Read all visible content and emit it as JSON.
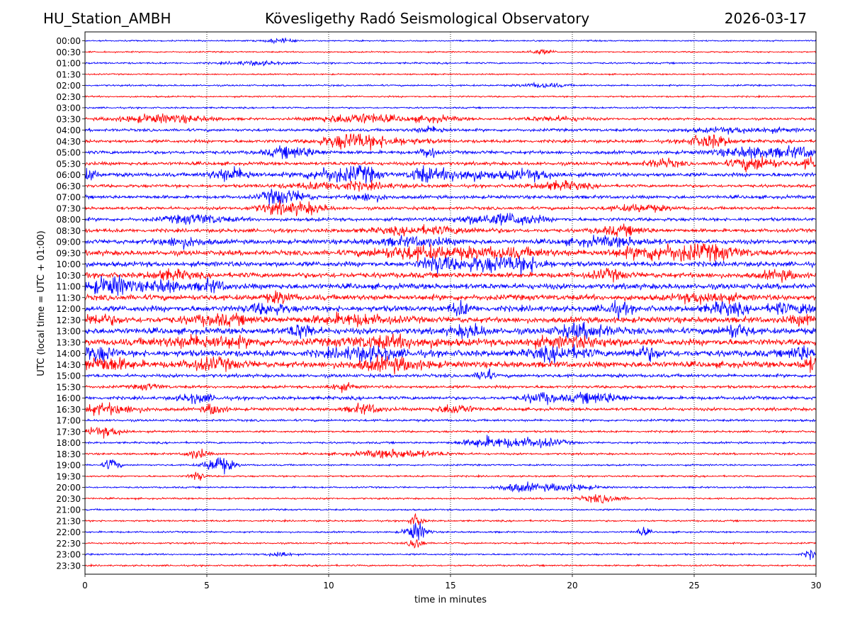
{
  "header": {
    "station": "HU_Station_AMBH",
    "title": "Kövesligethy Radó Seismological Observatory",
    "date": "2026-03-17"
  },
  "chart_data": {
    "type": "line",
    "title": "Kövesligethy Radó Seismological Observatory",
    "xlabel": "time in minutes",
    "ylabel": "UTC (local time = UTC + 01:00)",
    "xlim": [
      0,
      30
    ],
    "x_ticks": [
      "0",
      "5",
      "10",
      "15",
      "20",
      "25",
      "30"
    ],
    "x_tick_values": [
      0,
      5,
      10,
      15,
      20,
      25,
      30
    ],
    "grid": "vertical dotted",
    "colors": [
      "#0000ff",
      "#ff0000"
    ],
    "traces": [
      {
        "label": "00:00",
        "noise": 0.25,
        "bursts": [
          [
            8,
            0.4,
            0.8
          ]
        ]
      },
      {
        "label": "00:30",
        "noise": 0.25,
        "bursts": [
          [
            18.7,
            0.4,
            0.8
          ]
        ]
      },
      {
        "label": "01:00",
        "noise": 0.3,
        "bursts": [
          [
            7,
            0.8,
            0.7
          ]
        ]
      },
      {
        "label": "01:30",
        "noise": 0.25,
        "bursts": []
      },
      {
        "label": "02:00",
        "noise": 0.3,
        "bursts": [
          [
            18.8,
            0.6,
            0.8
          ]
        ]
      },
      {
        "label": "02:30",
        "noise": 0.28,
        "bursts": []
      },
      {
        "label": "03:00",
        "noise": 0.3,
        "bursts": []
      },
      {
        "label": "03:30",
        "noise": 0.4,
        "bursts": [
          [
            3.2,
            1.3,
            1.5
          ],
          [
            10.5,
            0.9,
            1.1
          ],
          [
            11.8,
            0.8,
            1.3
          ],
          [
            14.3,
            0.8,
            1.0
          ],
          [
            19.3,
            0.9,
            0.8
          ]
        ]
      },
      {
        "label": "04:00",
        "noise": 0.5,
        "bursts": [
          [
            14.2,
            0.5,
            1.0
          ],
          [
            27,
            1.5,
            0.8
          ]
        ]
      },
      {
        "label": "04:30",
        "noise": 0.55,
        "bursts": [
          [
            10.8,
            0.8,
            2.2
          ],
          [
            12.3,
            1.2,
            1.2
          ],
          [
            25.6,
            0.6,
            2.3
          ]
        ]
      },
      {
        "label": "05:00",
        "noise": 0.6,
        "bursts": [
          [
            8.5,
            0.7,
            2.0
          ],
          [
            14.1,
            0.2,
            2.5
          ],
          [
            27.5,
            1.1,
            1.8
          ],
          [
            29.5,
            0.5,
            1.5
          ]
        ]
      },
      {
        "label": "05:30",
        "noise": 0.6,
        "bursts": [
          [
            23.7,
            0.5,
            1.5
          ],
          [
            27.5,
            0.7,
            2.4
          ],
          [
            29.8,
            0.3,
            2.0
          ]
        ]
      },
      {
        "label": "06:00",
        "noise": 0.7,
        "bursts": [
          [
            0.2,
            0.2,
            2.0
          ],
          [
            6,
            0.6,
            2.2
          ],
          [
            10.3,
            0.9,
            2.3
          ],
          [
            11.5,
            0.4,
            1.8
          ],
          [
            13.8,
            0.3,
            2.5
          ],
          [
            15.3,
            0.9,
            2.0
          ],
          [
            18.2,
            0.9,
            1.5
          ]
        ]
      },
      {
        "label": "06:30",
        "noise": 0.55,
        "bursts": [
          [
            10.5,
            1.5,
            1.4
          ],
          [
            19.5,
            0.8,
            1.5
          ]
        ]
      },
      {
        "label": "07:00",
        "noise": 0.6,
        "bursts": [
          [
            7.8,
            0.4,
            2.3
          ],
          [
            8.6,
            0.5,
            1.5
          ],
          [
            11.6,
            0.5,
            1.3
          ]
        ]
      },
      {
        "label": "07:30",
        "noise": 0.55,
        "bursts": [
          [
            8,
            0.7,
            1.9
          ],
          [
            9.3,
            0.5,
            1.5
          ],
          [
            22.8,
            0.8,
            1.2
          ]
        ]
      },
      {
        "label": "08:00",
        "noise": 0.6,
        "bursts": [
          [
            4.6,
            0.9,
            1.6
          ],
          [
            16.2,
            0.8,
            1.4
          ],
          [
            17.8,
            0.7,
            1.8
          ]
        ]
      },
      {
        "label": "08:30",
        "noise": 0.65,
        "bursts": [
          [
            14,
            1.6,
            1.2
          ],
          [
            22,
            0.7,
            1.5
          ]
        ]
      },
      {
        "label": "09:00",
        "noise": 0.8,
        "bursts": [
          [
            4,
            0.7,
            1.5
          ],
          [
            13.5,
            1.2,
            1.3
          ],
          [
            21.5,
            1.2,
            1.4
          ]
        ]
      },
      {
        "label": "09:30",
        "noise": 0.9,
        "bursts": [
          [
            13.5,
            1.3,
            2.0
          ],
          [
            17,
            1.5,
            1.5
          ],
          [
            23.5,
            1.2,
            2.2
          ],
          [
            25.7,
            1.0,
            2.0
          ]
        ]
      },
      {
        "label": "10:00",
        "noise": 0.9,
        "bursts": [
          [
            14.4,
            0.4,
            2.5
          ],
          [
            16.5,
            1.1,
            2.3
          ],
          [
            18.2,
            0.5,
            1.8
          ]
        ]
      },
      {
        "label": "10:30",
        "noise": 0.95,
        "bursts": [
          [
            3.5,
            0.6,
            1.5
          ],
          [
            21.5,
            0.5,
            1.5
          ],
          [
            28.5,
            0.5,
            1.4
          ]
        ]
      },
      {
        "label": "11:00",
        "noise": 1.0,
        "bursts": [
          [
            0.8,
            0.6,
            2.2
          ],
          [
            1.5,
            0.4,
            1.8
          ],
          [
            3.2,
            0.6,
            1.8
          ],
          [
            5.2,
            0.4,
            1.8
          ]
        ]
      },
      {
        "label": "11:30",
        "noise": 1.0,
        "bursts": [
          [
            8,
            0.4,
            1.6
          ],
          [
            25.5,
            0.8,
            1.6
          ]
        ]
      },
      {
        "label": "12:00",
        "noise": 1.05,
        "bursts": [
          [
            7.5,
            0.6,
            1.6
          ],
          [
            15.4,
            0.3,
            2.2
          ],
          [
            21.8,
            0.4,
            2.0
          ],
          [
            26.3,
            0.6,
            1.8
          ],
          [
            28.5,
            0.3,
            1.8
          ],
          [
            29.6,
            0.3,
            1.8
          ]
        ]
      },
      {
        "label": "12:30",
        "noise": 1.05,
        "bursts": [
          [
            0.5,
            0.6,
            1.6
          ],
          [
            5.5,
            1.0,
            1.5
          ],
          [
            11,
            1.2,
            1.5
          ],
          [
            29.6,
            0.5,
            1.5
          ]
        ]
      },
      {
        "label": "13:00",
        "noise": 1.1,
        "bursts": [
          [
            8.9,
            0.4,
            2.2
          ],
          [
            15.8,
            0.5,
            2.0
          ],
          [
            20.5,
            0.8,
            2.2
          ],
          [
            26.7,
            0.4,
            2.2
          ]
        ]
      },
      {
        "label": "13:30",
        "noise": 1.15,
        "bursts": [
          [
            5,
            1.5,
            1.7
          ],
          [
            12.5,
            1.5,
            1.7
          ],
          [
            20,
            1.5,
            1.4
          ]
        ]
      },
      {
        "label": "14:00",
        "noise": 1.15,
        "bursts": [
          [
            0.5,
            0.5,
            2.3
          ],
          [
            11.5,
            1.0,
            2.0
          ],
          [
            19.5,
            0.8,
            2.0
          ],
          [
            23,
            0.4,
            2.0
          ],
          [
            29.4,
            0.4,
            2.2
          ]
        ]
      },
      {
        "label": "14:30",
        "noise": 1.1,
        "bursts": [
          [
            0.8,
            0.8,
            2.2
          ],
          [
            5.2,
            0.8,
            1.7
          ],
          [
            12.5,
            1.0,
            2.0
          ],
          [
            29.8,
            0.3,
            2.0
          ]
        ]
      },
      {
        "label": "15:00",
        "noise": 0.6,
        "bursts": [
          [
            16.4,
            0.2,
            2.8
          ]
        ]
      },
      {
        "label": "15:30",
        "noise": 0.5,
        "bursts": [
          [
            2.6,
            0.4,
            1.0
          ],
          [
            10.5,
            0.4,
            1.2
          ]
        ]
      },
      {
        "label": "16:00",
        "noise": 0.6,
        "bursts": [
          [
            4.6,
            0.5,
            1.6
          ],
          [
            18.7,
            0.5,
            1.8
          ],
          [
            21,
            0.8,
            1.8
          ]
        ]
      },
      {
        "label": "16:30",
        "noise": 0.55,
        "bursts": [
          [
            0.8,
            1.0,
            1.8
          ],
          [
            5.3,
            0.3,
            2.0
          ],
          [
            11.5,
            0.5,
            1.6
          ],
          [
            15.2,
            0.5,
            1.8
          ]
        ]
      },
      {
        "label": "17:00",
        "noise": 0.4,
        "bursts": []
      },
      {
        "label": "17:30",
        "noise": 0.35,
        "bursts": [
          [
            0.8,
            0.6,
            1.6
          ]
        ]
      },
      {
        "label": "18:00",
        "noise": 0.35,
        "bursts": [
          [
            16.5,
            0.7,
            1.8
          ],
          [
            18.5,
            0.8,
            1.7
          ]
        ]
      },
      {
        "label": "18:30",
        "noise": 0.35,
        "bursts": [
          [
            4.6,
            0.3,
            1.8
          ],
          [
            12.8,
            1.2,
            1.5
          ]
        ]
      },
      {
        "label": "19:00",
        "noise": 0.3,
        "bursts": [
          [
            1.1,
            0.2,
            2.5
          ],
          [
            5.5,
            0.4,
            3.2
          ]
        ]
      },
      {
        "label": "19:30",
        "noise": 0.3,
        "bursts": [
          [
            4.6,
            0.2,
            1.8
          ]
        ]
      },
      {
        "label": "20:00",
        "noise": 0.3,
        "bursts": [
          [
            17.8,
            0.6,
            1.5
          ],
          [
            19.7,
            0.8,
            1.3
          ]
        ]
      },
      {
        "label": "20:30",
        "noise": 0.3,
        "bursts": [
          [
            21.2,
            0.6,
            1.4
          ]
        ]
      },
      {
        "label": "21:00",
        "noise": 0.3,
        "bursts": []
      },
      {
        "label": "21:30",
        "noise": 0.3,
        "bursts": [
          [
            13.6,
            0.2,
            2.2
          ]
        ]
      },
      {
        "label": "22:00",
        "noise": 0.3,
        "bursts": [
          [
            13.6,
            0.3,
            3.5
          ],
          [
            22.9,
            0.2,
            1.5
          ]
        ]
      },
      {
        "label": "22:30",
        "noise": 0.3,
        "bursts": [
          [
            13.6,
            0.2,
            2.2
          ]
        ]
      },
      {
        "label": "23:00",
        "noise": 0.3,
        "bursts": [
          [
            8,
            0.3,
            1.2
          ],
          [
            29.8,
            0.2,
            1.5
          ]
        ]
      },
      {
        "label": "23:30",
        "noise": 0.3,
        "bursts": []
      }
    ]
  }
}
